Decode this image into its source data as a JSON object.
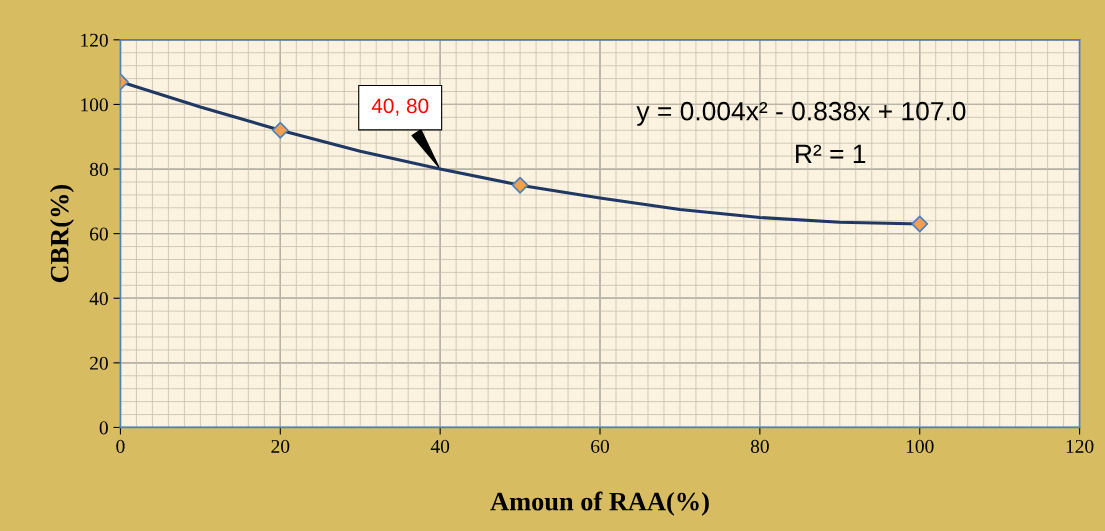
{
  "chart_data": {
    "type": "scatter",
    "xlabel": "Amoun of RAA(%)",
    "ylabel": "CBR(%)",
    "xlim": [
      0,
      120
    ],
    "ylim": [
      0,
      120
    ],
    "xticks": [
      0,
      20,
      40,
      60,
      80,
      100,
      120
    ],
    "yticks": [
      0,
      20,
      40,
      60,
      80,
      100,
      120
    ],
    "grid": true,
    "series": [
      {
        "marker": "diamond",
        "color": "#f0a050",
        "x": [
          0,
          20,
          50,
          100
        ],
        "values": [
          107,
          92,
          75,
          63
        ]
      },
      {
        "type": "line",
        "marker": "none",
        "color": "#1f3864",
        "x": [
          0,
          10,
          20,
          30,
          40,
          50,
          60,
          70,
          80,
          90,
          100
        ],
        "values": [
          107,
          99.2,
          92,
          85.5,
          80,
          75,
          71,
          67.5,
          65,
          63.5,
          63
        ]
      }
    ],
    "annotations": [
      {
        "text": "40, 80",
        "x": 40,
        "y": 80
      },
      "y = 0.004x² - 0.838x + 107.0",
      "R² = 1"
    ]
  }
}
